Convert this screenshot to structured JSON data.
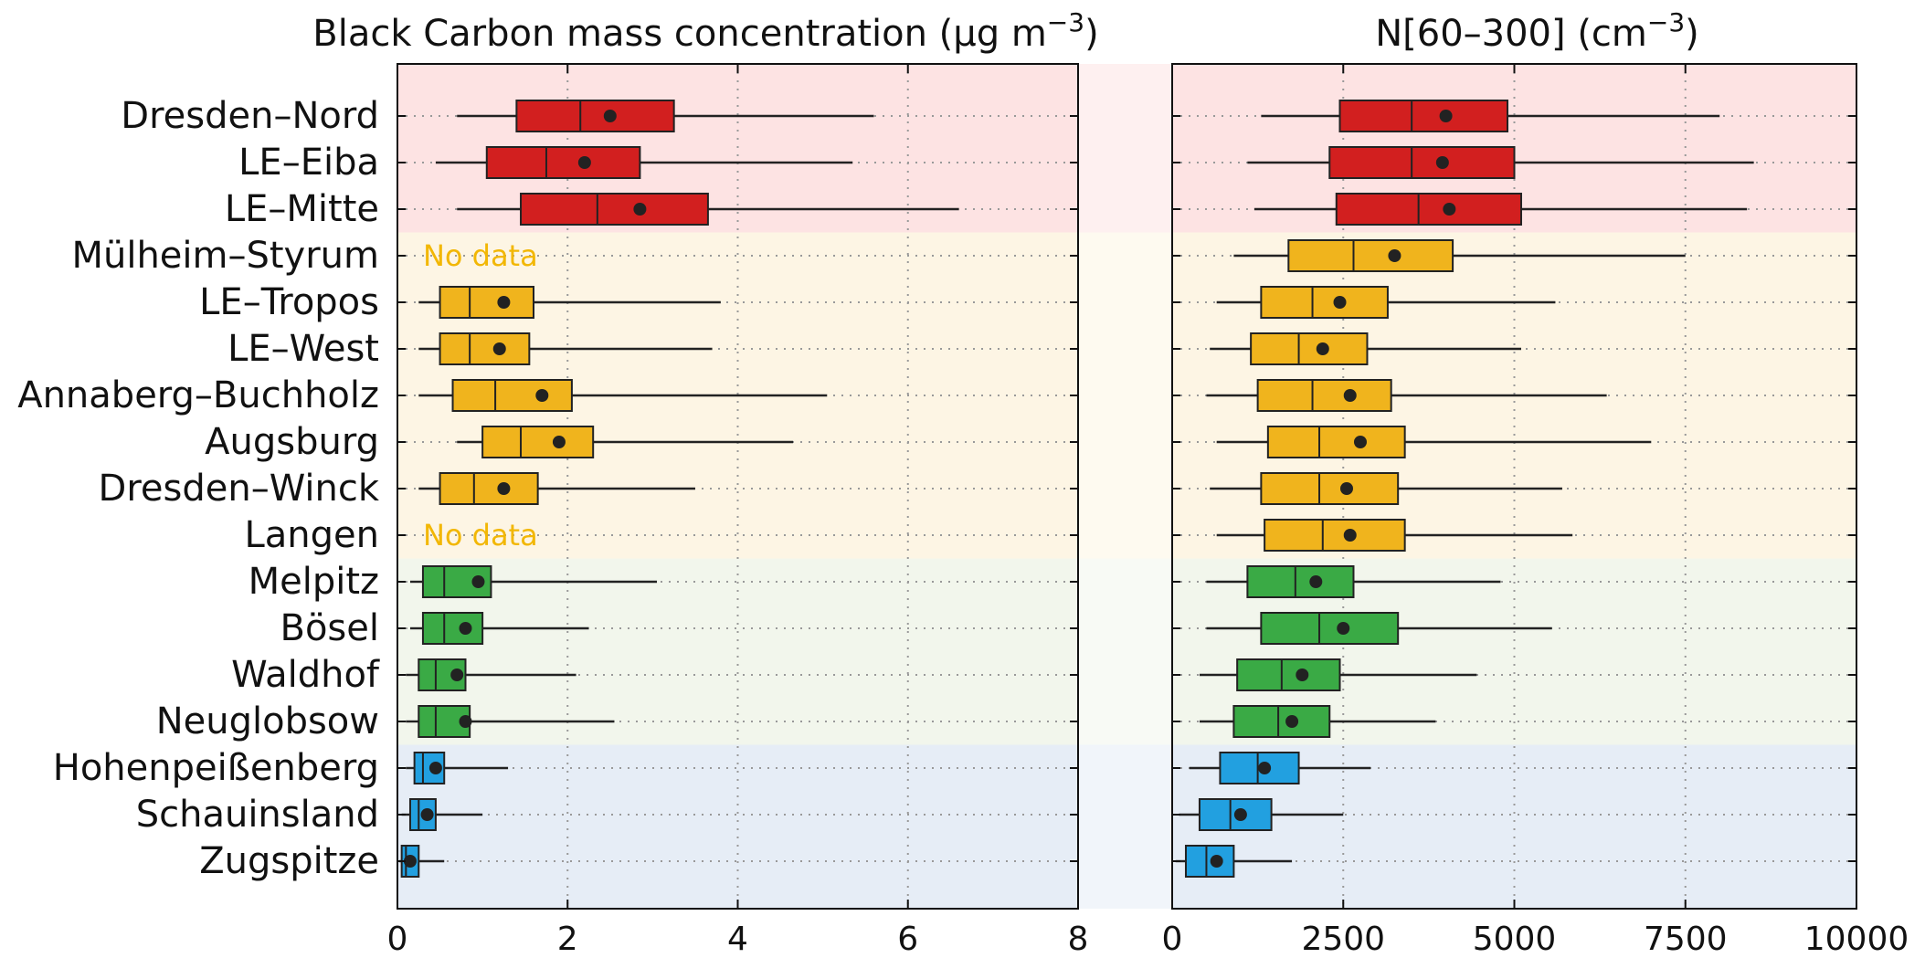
{
  "chart_data": {
    "type": "boxplot",
    "stations": [
      "Dresden–Nord",
      "LE–Eiba",
      "LE–Mitte",
      "Mülheim–Styrum",
      "LE–Tropos",
      "LE–West",
      "Annaberg–Buchholz",
      "Augsburg",
      "Dresden–Winck",
      "Langen",
      "Melpitz",
      "Bösel",
      "Waldhof",
      "Neuglobsow",
      "Hohenpeißenberg",
      "Schauinsland",
      "Zugspitze"
    ],
    "categories": [
      {
        "name": "red",
        "color": "#d21f1f",
        "band_color": "#fde3e3",
        "stations": [
          0,
          1,
          2
        ]
      },
      {
        "name": "orange",
        "color": "#f0b41d",
        "band_color": "#fdf5e4",
        "stations": [
          3,
          4,
          5,
          6,
          7,
          8,
          9
        ]
      },
      {
        "name": "green",
        "color": "#3aaa45",
        "band_color": "#f2f6ec",
        "stations": [
          10,
          11,
          12,
          13
        ]
      },
      {
        "name": "blue",
        "color": "#22a0e0",
        "band_color": "#e6edf6",
        "stations": [
          14,
          15,
          16
        ]
      }
    ],
    "no_data_label": "No data",
    "panels": [
      {
        "title": "Black Carbon mass concentration  (μg m",
        "title_sup": "−3",
        "title_suffix": ")",
        "xlim": [
          0,
          8
        ],
        "ticks": [
          0,
          2,
          4,
          6,
          8
        ],
        "tick_labels": [
          "0",
          "2",
          "4",
          "6",
          "8"
        ],
        "stats": [
          {
            "wlo": 0.7,
            "q1": 1.4,
            "med": 2.15,
            "q3": 3.25,
            "whi": 5.6,
            "mean": 2.5
          },
          {
            "wlo": 0.45,
            "q1": 1.05,
            "med": 1.75,
            "q3": 2.85,
            "whi": 5.35,
            "mean": 2.2
          },
          {
            "wlo": 0.7,
            "q1": 1.45,
            "med": 2.35,
            "q3": 3.65,
            "whi": 6.6,
            "mean": 2.85
          },
          null,
          {
            "wlo": 0.25,
            "q1": 0.5,
            "med": 0.85,
            "q3": 1.6,
            "whi": 3.8,
            "mean": 1.25
          },
          {
            "wlo": 0.25,
            "q1": 0.5,
            "med": 0.85,
            "q3": 1.55,
            "whi": 3.7,
            "mean": 1.2
          },
          {
            "wlo": 0.25,
            "q1": 0.65,
            "med": 1.15,
            "q3": 2.05,
            "whi": 5.05,
            "mean": 1.7
          },
          {
            "wlo": 0.7,
            "q1": 1.0,
            "med": 1.45,
            "q3": 2.3,
            "whi": 4.65,
            "mean": 1.9
          },
          {
            "wlo": 0.25,
            "q1": 0.5,
            "med": 0.9,
            "q3": 1.65,
            "whi": 3.5,
            "mean": 1.25
          },
          null,
          {
            "wlo": 0.15,
            "q1": 0.3,
            "med": 0.55,
            "q3": 1.1,
            "whi": 3.05,
            "mean": 0.95
          },
          {
            "wlo": 0.15,
            "q1": 0.3,
            "med": 0.55,
            "q3": 1.0,
            "whi": 2.25,
            "mean": 0.8
          },
          {
            "wlo": 0.1,
            "q1": 0.25,
            "med": 0.45,
            "q3": 0.8,
            "whi": 2.1,
            "mean": 0.7
          },
          {
            "wlo": 0.1,
            "q1": 0.25,
            "med": 0.45,
            "q3": 0.85,
            "whi": 2.55,
            "mean": 0.8
          },
          {
            "wlo": 0.1,
            "q1": 0.2,
            "med": 0.3,
            "q3": 0.55,
            "whi": 1.3,
            "mean": 0.45
          },
          {
            "wlo": 0.05,
            "q1": 0.15,
            "med": 0.25,
            "q3": 0.45,
            "whi": 1.0,
            "mean": 0.35
          },
          {
            "wlo": 0.02,
            "q1": 0.05,
            "med": 0.1,
            "q3": 0.25,
            "whi": 0.55,
            "mean": 0.15
          }
        ]
      },
      {
        "title": "N[60–300]  (cm",
        "title_sup": "−3",
        "title_suffix": ")",
        "xlim": [
          0,
          10000
        ],
        "ticks": [
          0,
          2500,
          5000,
          7500,
          10000
        ],
        "tick_labels": [
          "0",
          "2500",
          "5000",
          "7500",
          "10000"
        ],
        "stats": [
          {
            "wlo": 1300,
            "q1": 2450,
            "med": 3500,
            "q3": 4900,
            "whi": 8000,
            "mean": 4000
          },
          {
            "wlo": 1100,
            "q1": 2300,
            "med": 3500,
            "q3": 5000,
            "whi": 8500,
            "mean": 3950
          },
          {
            "wlo": 1200,
            "q1": 2400,
            "med": 3600,
            "q3": 5100,
            "whi": 8400,
            "mean": 4050
          },
          {
            "wlo": 900,
            "q1": 1700,
            "med": 2650,
            "q3": 4100,
            "whi": 7500,
            "mean": 3250
          },
          {
            "wlo": 650,
            "q1": 1300,
            "med": 2050,
            "q3": 3150,
            "whi": 5600,
            "mean": 2450
          },
          {
            "wlo": 550,
            "q1": 1150,
            "med": 1850,
            "q3": 2850,
            "whi": 5100,
            "mean": 2200
          },
          {
            "wlo": 500,
            "q1": 1250,
            "med": 2050,
            "q3": 3200,
            "whi": 6350,
            "mean": 2600
          },
          {
            "wlo": 650,
            "q1": 1400,
            "med": 2150,
            "q3": 3400,
            "whi": 7000,
            "mean": 2750
          },
          {
            "wlo": 550,
            "q1": 1300,
            "med": 2150,
            "q3": 3300,
            "whi": 5700,
            "mean": 2550
          },
          {
            "wlo": 650,
            "q1": 1350,
            "med": 2200,
            "q3": 3400,
            "whi": 5850,
            "mean": 2600
          },
          {
            "wlo": 500,
            "q1": 1100,
            "med": 1800,
            "q3": 2650,
            "whi": 4800,
            "mean": 2100
          },
          {
            "wlo": 500,
            "q1": 1300,
            "med": 2150,
            "q3": 3300,
            "whi": 5550,
            "mean": 2500
          },
          {
            "wlo": 400,
            "q1": 950,
            "med": 1600,
            "q3": 2450,
            "whi": 4450,
            "mean": 1900
          },
          {
            "wlo": 400,
            "q1": 900,
            "med": 1550,
            "q3": 2300,
            "whi": 3850,
            "mean": 1750
          },
          {
            "wlo": 250,
            "q1": 700,
            "med": 1250,
            "q3": 1850,
            "whi": 2900,
            "mean": 1350
          },
          {
            "wlo": 100,
            "q1": 400,
            "med": 850,
            "q3": 1450,
            "whi": 2500,
            "mean": 1000
          },
          {
            "wlo": 50,
            "q1": 200,
            "med": 500,
            "q3": 900,
            "whi": 1750,
            "mean": 650
          }
        ]
      }
    ]
  }
}
